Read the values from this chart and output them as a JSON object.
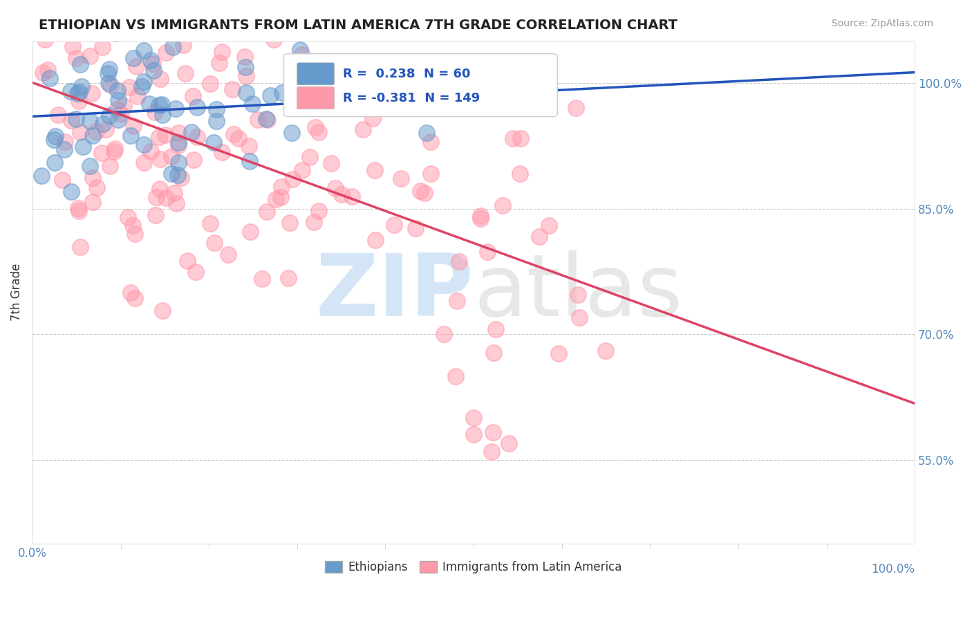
{
  "title": "ETHIOPIAN VS IMMIGRANTS FROM LATIN AMERICA 7TH GRADE CORRELATION CHART",
  "source_text": "Source: ZipAtlas.com",
  "ylabel": "7th Grade",
  "xlim": [
    0.0,
    1.0
  ],
  "ylim": [
    0.45,
    1.05
  ],
  "x_tick_labels": [
    "0.0%",
    "100.0%"
  ],
  "y_tick_labels_right": [
    "55.0%",
    "70.0%",
    "85.0%",
    "100.0%"
  ],
  "y_tick_vals_right": [
    0.55,
    0.7,
    0.85,
    1.0
  ],
  "legend_box": {
    "blue_r": "0.238",
    "blue_n": "60",
    "pink_r": "-0.381",
    "pink_n": "149"
  },
  "blue_color": "#6699CC",
  "pink_color": "#FF99AA",
  "blue_line_color": "#2255BB",
  "pink_line_color": "#DD4466",
  "watermark_zip": "ZIP",
  "watermark_atlas": "atlas",
  "watermark_zip_color": "#AACCEE",
  "watermark_atlas_color": "#BBBBBB",
  "background_color": "#FFFFFF",
  "grid_color": "#CCCCCC",
  "label_color": "#5588BB",
  "blue_seed": 42,
  "pink_seed": 123,
  "blue_N": 60,
  "pink_N": 149,
  "blue_R": 0.238,
  "pink_R": -0.381
}
